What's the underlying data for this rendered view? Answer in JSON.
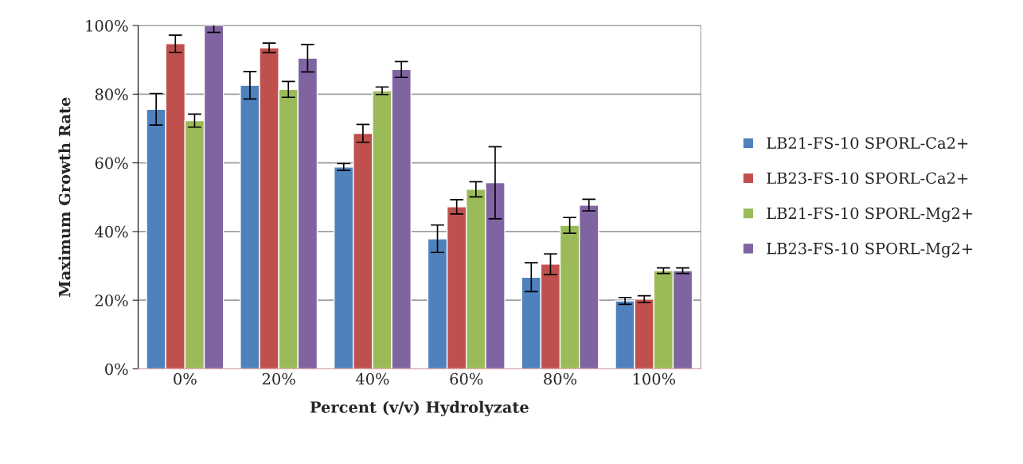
{
  "chart_data": {
    "type": "bar",
    "xlabel": "Percent (v/v) Hydrolyzate",
    "ylabel": "Maximum Growth Rate",
    "categories": [
      "0%",
      "20%",
      "40%",
      "60%",
      "80%",
      "100%"
    ],
    "series": [
      {
        "name": "LB21-FS-10 SPORL-Ca2+",
        "color": "#4f81bd",
        "values": [
          75.6,
          82.6,
          58.8,
          37.9,
          26.7,
          19.8
        ],
        "errors": [
          4.6,
          4,
          1,
          4,
          4.2,
          1
        ]
      },
      {
        "name": "LB23-FS-10 SPORL-Ca2+",
        "color": "#c0504d",
        "values": [
          94.7,
          93.5,
          68.6,
          47.2,
          30.5,
          20.3
        ],
        "errors": [
          2.5,
          1.4,
          2.6,
          2.1,
          3,
          1
        ]
      },
      {
        "name": "LB21-FS-10 SPORL-Mg2+",
        "color": "#9bbb59",
        "values": [
          72.3,
          81.4,
          81,
          52.3,
          41.8,
          28.6
        ],
        "errors": [
          1.9,
          2.3,
          1.1,
          2.2,
          2.3,
          0.8
        ]
      },
      {
        "name": "LB23-FS-10 SPORL-Mg2+",
        "color": "#8064a2",
        "values": [
          100,
          90.5,
          87.2,
          54.2,
          47.7,
          28.6
        ],
        "errors": [
          2,
          4,
          2.3,
          10.5,
          1.7,
          0.8
        ]
      }
    ],
    "ylim": [
      0,
      100
    ],
    "yticks": [
      {
        "value": 0,
        "label": "0%"
      },
      {
        "value": 20,
        "label": "20%"
      },
      {
        "value": 40,
        "label": "40%"
      },
      {
        "value": 60,
        "label": "60%"
      },
      {
        "value": 80,
        "label": "80%"
      },
      {
        "value": 100,
        "label": "100%"
      }
    ],
    "grid": "y",
    "legend": "right"
  }
}
